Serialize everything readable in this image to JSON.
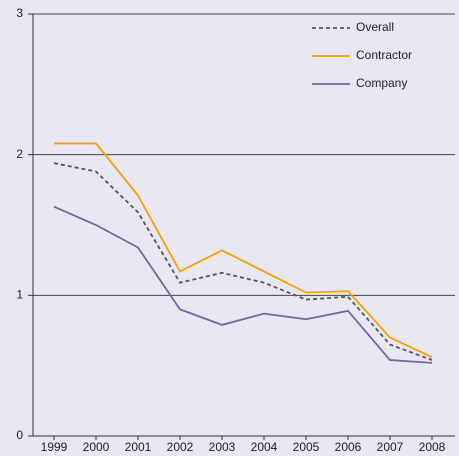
{
  "chart_data": {
    "type": "line",
    "categories": [
      "1999",
      "2000",
      "2001",
      "2002",
      "2003",
      "2004",
      "2005",
      "2006",
      "2007",
      "2008"
    ],
    "series": [
      {
        "name": "Overall",
        "color": "#555555",
        "dashed": true,
        "values": [
          1.94,
          1.88,
          1.59,
          1.09,
          1.16,
          1.09,
          0.97,
          0.99,
          0.65,
          0.54
        ]
      },
      {
        "name": "Contractor",
        "color": "#f5a000",
        "dashed": false,
        "values": [
          2.08,
          2.08,
          1.71,
          1.17,
          1.32,
          1.17,
          1.02,
          1.03,
          0.7,
          0.56
        ]
      },
      {
        "name": "Company",
        "color": "#76679a",
        "dashed": false,
        "values": [
          1.63,
          1.5,
          1.34,
          0.9,
          0.79,
          0.87,
          0.83,
          0.89,
          0.54,
          0.52
        ]
      }
    ],
    "ylim": [
      0,
      3
    ],
    "yticks": [
      0,
      1,
      2,
      3
    ],
    "grid": true,
    "legend": "top-right"
  }
}
